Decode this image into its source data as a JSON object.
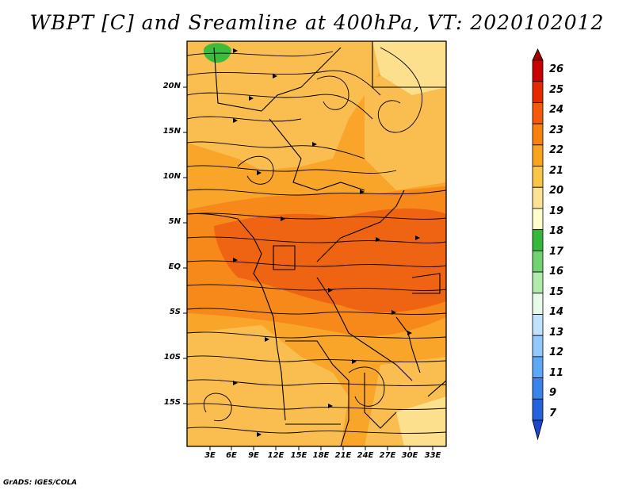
{
  "title": "WBPT [C] and Sreamline at 400hPa, VT: 2020102012",
  "credit": "GrADS: IGES/COLA",
  "lat_labels": [
    "20N",
    "15N",
    "10N",
    "5N",
    "EQ",
    "5S",
    "10S",
    "15S"
  ],
  "lon_labels": [
    "3E",
    "6E",
    "9E",
    "12E",
    "15E",
    "18E",
    "21E",
    "24E",
    "27E",
    "30E",
    "33E"
  ],
  "colorbar": {
    "levels": [
      "26",
      "25",
      "24",
      "23",
      "22",
      "21",
      "20",
      "19",
      "18",
      "17",
      "16",
      "15",
      "14",
      "13",
      "12",
      "11",
      "9",
      "7"
    ],
    "colors": [
      "#a50000",
      "#c80000",
      "#e32a00",
      "#f45a0a",
      "#f7820f",
      "#f9a41f",
      "#fbc547",
      "#fde294",
      "#ffffcc",
      "#36b83a",
      "#71d36f",
      "#b1ebac",
      "#e8fbe8",
      "#bfe2ff",
      "#92c8ff",
      "#5ea8f8",
      "#3a83eb",
      "#2563de",
      "#1d47c9"
    ]
  },
  "map_colors": {
    "wbpt_20": "#f9be4f",
    "wbpt_21": "#f8a52a",
    "wbpt_22": "#f6891a",
    "wbpt_23": "#ef6413",
    "wbpt_19": "#fde08e",
    "wbpt_17": "#3dbb3d"
  }
}
